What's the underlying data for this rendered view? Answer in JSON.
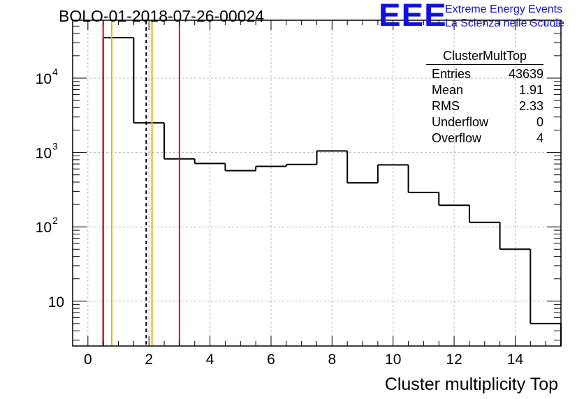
{
  "title": "BOLO-01-2018-07-26-00024",
  "logo": {
    "mark": "EEE",
    "line1": "Extreme Energy Events",
    "line2": "La Scienza nelle Scuole"
  },
  "stats_box": {
    "title": "ClusterMultTop",
    "rows": [
      {
        "label": "Entries",
        "value": "43639"
      },
      {
        "label": "Mean",
        "value": "1.91"
      },
      {
        "label": "RMS",
        "value": "2.33"
      },
      {
        "label": "Underflow",
        "value": "0"
      },
      {
        "label": "Overflow",
        "value": "4"
      }
    ]
  },
  "chart_data": {
    "type": "histogram",
    "title": "BOLO-01-2018-07-26-00024",
    "xlabel": "Cluster multiplicity Top",
    "ylabel": "",
    "x_range": [
      -0.5,
      15.5
    ],
    "y_range": [
      2.5,
      60000
    ],
    "y_scale": "log",
    "grid": true,
    "x_ticks": [
      0,
      2,
      4,
      6,
      8,
      10,
      12,
      14
    ],
    "y_ticks": [
      {
        "value": 10,
        "base": "10",
        "exp": ""
      },
      {
        "value": 100,
        "base": "10",
        "exp": "2"
      },
      {
        "value": 1000,
        "base": "10",
        "exp": "3"
      },
      {
        "value": 10000,
        "base": "10",
        "exp": "4"
      }
    ],
    "bin_edges": [
      -0.5,
      0.5,
      1.5,
      2.5,
      3.5,
      4.5,
      5.5,
      6.5,
      7.5,
      8.5,
      9.5,
      10.5,
      11.5,
      12.5,
      13.5,
      14.5,
      15.5
    ],
    "counts": [
      0,
      35000,
      2500,
      820,
      710,
      570,
      650,
      690,
      1050,
      390,
      680,
      290,
      195,
      115,
      50,
      5
    ],
    "vertical_lines": [
      {
        "x": 0.5,
        "color": "#e00000",
        "style": "solid"
      },
      {
        "x": 0.78,
        "color": "#f0b000",
        "style": "solid"
      },
      {
        "x": 1.91,
        "color": "#000000",
        "style": "dashed"
      },
      {
        "x": 2.1,
        "color": "#f0b000",
        "style": "solid"
      },
      {
        "x": 3.0,
        "color": "#e00000",
        "style": "solid"
      }
    ],
    "colors": {
      "line": "#000000",
      "grid": "#b8b8b8"
    }
  }
}
